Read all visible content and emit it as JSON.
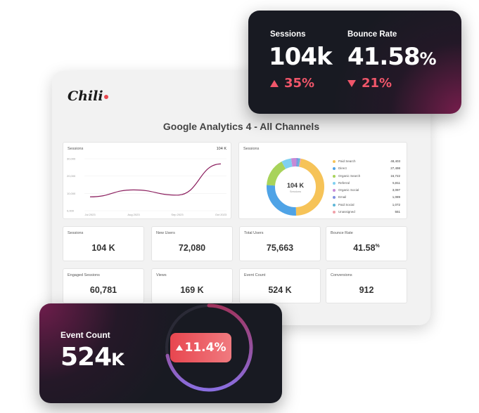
{
  "brand": {
    "logo": "Chili"
  },
  "dashboard": {
    "title": "Google Analytics 4 - All Channels",
    "sessions_chart": {
      "label": "Sessions",
      "total": "104 K"
    },
    "donut": {
      "label": "Sessions",
      "center_value": "104 K",
      "center_caption": "Sessions"
    },
    "metrics": [
      {
        "label": "Sessions",
        "value": "104 K"
      },
      {
        "label": "New Users",
        "value": "72,080"
      },
      {
        "label": "Total Users",
        "value": "75,663"
      },
      {
        "label": "Bounce Rate",
        "value": "41.58",
        "unit": "%"
      },
      {
        "label": "Engaged Sessions",
        "value": "60,781"
      },
      {
        "label": "Views",
        "value": "169 K"
      },
      {
        "label": "Event Count",
        "value": "524 K"
      },
      {
        "label": "Conversions",
        "value": "912"
      }
    ]
  },
  "chart_data": [
    {
      "type": "line",
      "title": "Sessions",
      "x": [
        "Jul 2023",
        "Aug 2023",
        "Sep 2023",
        "Oct 2023"
      ],
      "y_ticks": [
        "30,000",
        "20,000",
        "10,000",
        "0,000"
      ],
      "series": [
        {
          "values": [
            8000,
            12000,
            9000,
            27000
          ],
          "color": "#8b1e5e"
        }
      ],
      "ylim": [
        0,
        30000
      ]
    },
    {
      "type": "pie",
      "title": "Sessions",
      "categories": [
        "Paid Search",
        "Direct",
        "Organic Search",
        "Referral",
        "Organic Social",
        "Email",
        "Paid Social",
        "Unassigned"
      ],
      "values": [
        48403,
        27498,
        16722,
        5811,
        3097,
        1089,
        1072,
        551
      ],
      "labels": [
        "48,403",
        "27,498",
        "16,722",
        "5,811",
        "3,097",
        "1,089",
        "1,072",
        "551"
      ],
      "colors": [
        "#f6c358",
        "#4fa3e6",
        "#a8d35a",
        "#7fd0f0",
        "#c78ad6",
        "#7f8fe0",
        "#5fb7d8",
        "#f0a0a8"
      ]
    }
  ],
  "floating_top": {
    "sessions_label": "Sessions",
    "sessions_value": "104k",
    "sessions_change": "35%",
    "bounce_label": "Bounce Rate",
    "bounce_value": "41.58",
    "bounce_unit": "%",
    "bounce_change": "21%"
  },
  "floating_bottom": {
    "label": "Event Count",
    "value": "524",
    "unit": "K",
    "change": "11.4%",
    "progress": 0.72
  },
  "colors": {
    "accent": "#f0566a",
    "dark_card": "#181a22",
    "line": "#8b1e5e"
  }
}
